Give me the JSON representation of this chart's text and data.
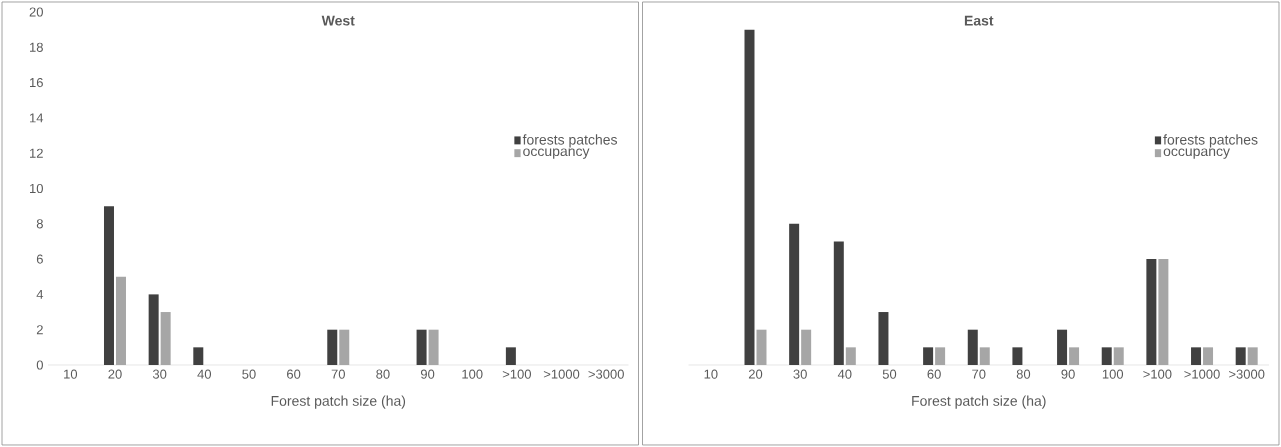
{
  "chart_data": [
    {
      "type": "bar",
      "title": "West",
      "xlabel": "Forest patch size (ha)",
      "categories": [
        "10",
        "20",
        "30",
        "40",
        "50",
        "60",
        "70",
        "80",
        "90",
        "100",
        ">100",
        ">1000",
        ">3000"
      ],
      "series": [
        {
          "name": "forests patches",
          "color": "#404040",
          "values": [
            0,
            9,
            4,
            1,
            0,
            0,
            2,
            0,
            2,
            0,
            1,
            0,
            0
          ]
        },
        {
          "name": "occupancy",
          "color": "#a6a6a6",
          "values": [
            0,
            5,
            3,
            0,
            0,
            0,
            2,
            0,
            2,
            0,
            0,
            0,
            0
          ]
        }
      ],
      "ylim": [
        0,
        20
      ],
      "yticks": [
        0,
        2,
        4,
        6,
        8,
        10,
        12,
        14,
        16,
        18,
        20
      ],
      "legend": "right"
    },
    {
      "type": "bar",
      "title": "East",
      "xlabel": "Forest patch size (ha)",
      "categories": [
        "10",
        "20",
        "30",
        "40",
        "50",
        "60",
        "70",
        "80",
        "90",
        "100",
        ">100",
        ">1000",
        ">3000"
      ],
      "series": [
        {
          "name": "forests patches",
          "color": "#404040",
          "values": [
            0,
            19,
            8,
            7,
            3,
            1,
            2,
            1,
            2,
            1,
            6,
            1,
            1
          ]
        },
        {
          "name": "occupancy",
          "color": "#a6a6a6",
          "values": [
            0,
            2,
            2,
            1,
            0,
            1,
            1,
            0,
            1,
            1,
            6,
            1,
            1
          ]
        }
      ],
      "ylim": [
        0,
        20
      ],
      "yticks": [
        0,
        2,
        4,
        6,
        8,
        10,
        12,
        14,
        16,
        18,
        20
      ],
      "legend": "right",
      "tick_labels": "x"
    }
  ]
}
